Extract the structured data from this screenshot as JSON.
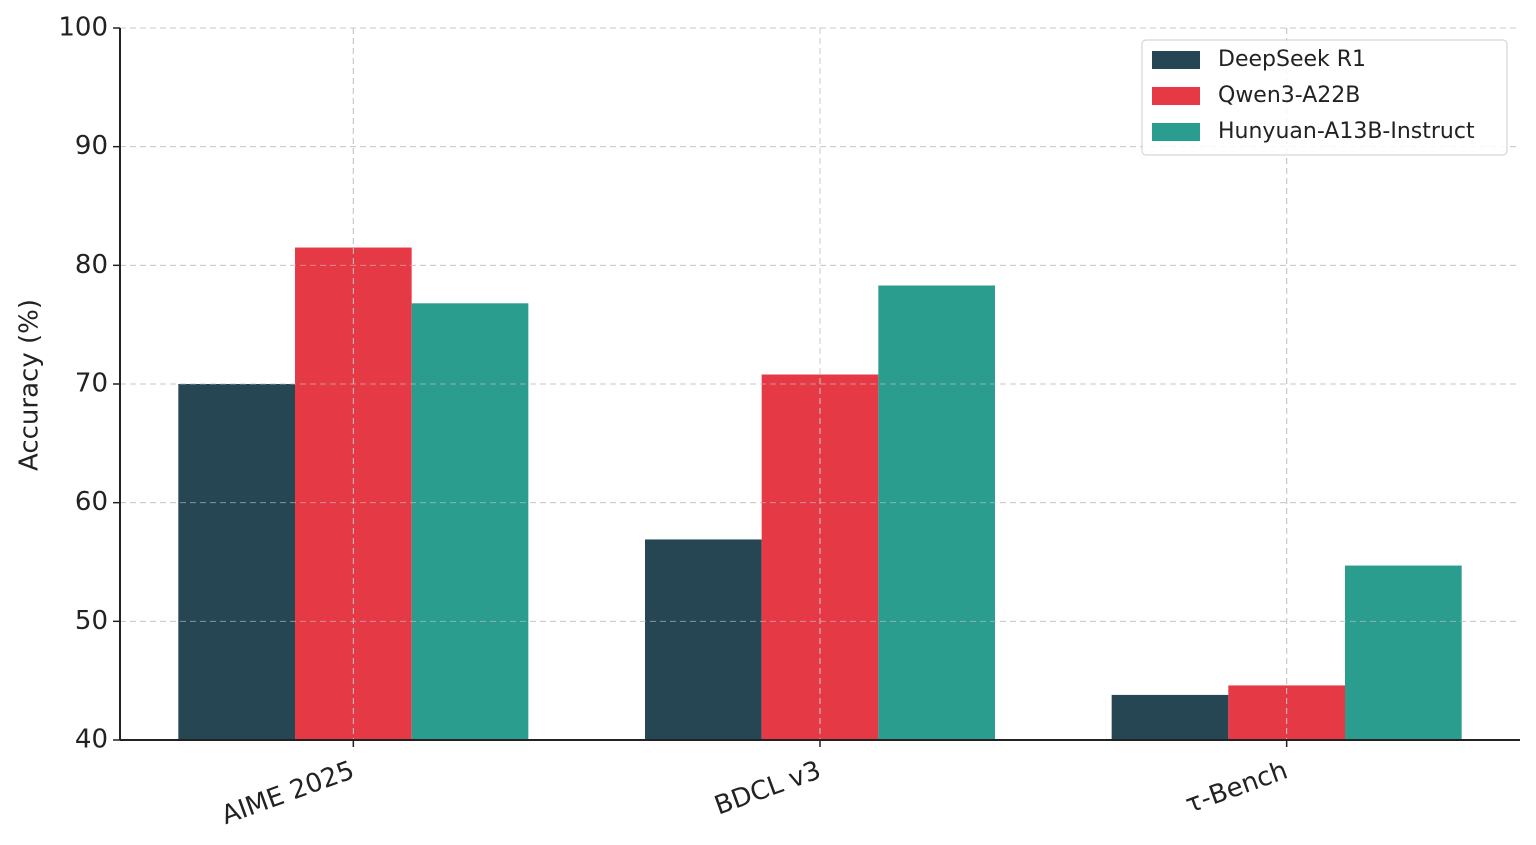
{
  "chart_data": {
    "type": "bar",
    "y_label": "Accuracy (%)",
    "categories": [
      "AIME 2025",
      "BDCL v3",
      "τ-Bench"
    ],
    "series": [
      {
        "name": "DeepSeek R1",
        "color": "#264653",
        "values": [
          70.0,
          56.9,
          43.8
        ]
      },
      {
        "name": "Qwen3-A22B",
        "color": "#e63946",
        "values": [
          81.5,
          70.8,
          44.6
        ]
      },
      {
        "name": "Hunyuan-A13B-Instruct",
        "color": "#2a9d8f",
        "values": [
          76.8,
          78.3,
          54.7
        ]
      }
    ],
    "ylim": [
      40,
      100
    ],
    "yticks": [
      40,
      50,
      60,
      70,
      80,
      90,
      100
    ],
    "grid": true,
    "legend": "upper right"
  }
}
